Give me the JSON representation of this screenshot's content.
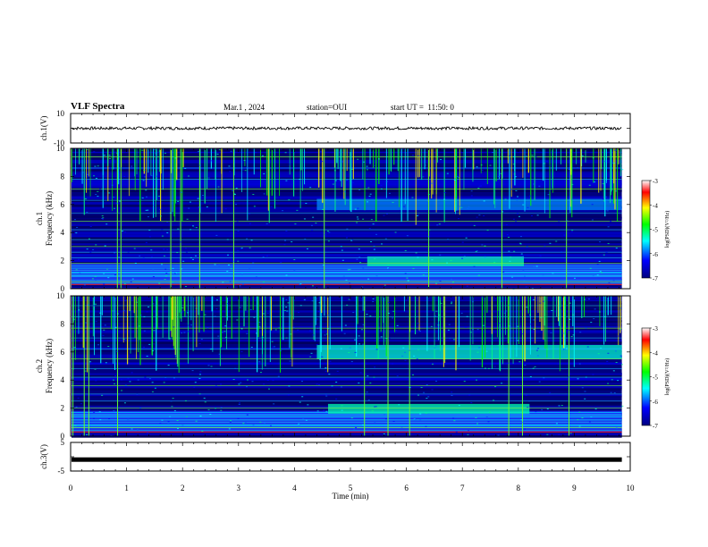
{
  "header": {
    "title": "VLF Spectra",
    "date": "Mar.1 , 2024",
    "station": "station=OUI",
    "start": "start UT =  11:50: 0"
  },
  "chart_data": [
    {
      "type": "line",
      "panel": "ch1-waveform",
      "ylabel": "ch.1(V)",
      "ylim": [
        -10,
        10
      ],
      "ytick_labels": [
        "10",
        "-10"
      ],
      "xlim": [
        0,
        9.85
      ],
      "baseline_value": 0,
      "noise_amplitude": 1,
      "color": "#000000"
    },
    {
      "type": "heatmap",
      "panel": "ch1-spectrogram",
      "ylabel": "ch.1\nFrequency (kHz)",
      "ylim": [
        0,
        10
      ],
      "yticks": [
        0,
        2,
        4,
        6,
        8,
        10
      ],
      "xlim": [
        0,
        9.85
      ],
      "color_scale": {
        "label": "log(PSD)(V²/Hz)",
        "range": [
          -7,
          -3
        ],
        "ticks": [
          "-3",
          "-4",
          "-5",
          "-6",
          "-7"
        ],
        "colors": [
          "#00007f",
          "#0000ff",
          "#00ffff",
          "#00ff00",
          "#ffff00",
          "#ff0000",
          "#ffffff"
        ]
      },
      "features": {
        "intense_band_khz": [
          0.3,
          1.8
        ],
        "tone_lines_khz": [
          0.5,
          0.9,
          1.3,
          1.8,
          2.2,
          2.6,
          3.0,
          3.5,
          4.2,
          4.8,
          5.4,
          6.3,
          7.1,
          7.8,
          8.6,
          9.4
        ],
        "bright_band": {
          "t": [
            5.3,
            8.1
          ],
          "f_khz": [
            1.6,
            2.3
          ]
        },
        "emission_6khz": {
          "t": [
            4.4,
            9.85
          ],
          "f_khz": [
            5.6,
            6.4
          ]
        }
      }
    },
    {
      "type": "heatmap",
      "panel": "ch2-spectrogram",
      "ylabel": "ch.2\nFrequency (kHz)",
      "ylim": [
        0,
        10
      ],
      "yticks": [
        0,
        2,
        4,
        6,
        8,
        10
      ],
      "xlim": [
        0,
        9.85
      ],
      "color_scale": {
        "label": "log(PSD)(V²/Hz)",
        "range": [
          -7,
          -3
        ],
        "ticks": [
          "-3",
          "-4",
          "-5",
          "-6",
          "-7"
        ],
        "colors": [
          "#00007f",
          "#0000ff",
          "#00ffff",
          "#00ff00",
          "#ffff00",
          "#ff0000",
          "#ffffff"
        ]
      },
      "features": {
        "intense_band_khz": [
          0.3,
          1.8
        ],
        "tone_lines_khz": [
          0.6,
          1.0,
          1.5,
          2.0,
          2.5,
          3.0,
          3.6,
          4.2,
          4.8,
          5.5,
          6.2,
          7.0,
          7.7,
          8.5,
          9.3
        ],
        "bright_band": {
          "t": [
            4.6,
            8.2
          ],
          "f_khz": [
            1.6,
            2.3
          ]
        },
        "emission_6khz": {
          "t": [
            4.4,
            9.85
          ],
          "f_khz": [
            5.5,
            6.5
          ]
        }
      }
    },
    {
      "type": "line",
      "panel": "ch3-waveform",
      "ylabel": "ch.3(V)",
      "ylim": [
        -5,
        5
      ],
      "ytick_labels": [
        "5",
        "-5"
      ],
      "xlim": [
        0,
        9.85
      ],
      "baseline_value": -1,
      "noise_amplitude": 0.2,
      "color": "#000000"
    }
  ],
  "x_axis": {
    "label": "Time (min)",
    "ticks": [
      "0",
      "1",
      "2",
      "3",
      "4",
      "5",
      "6",
      "7",
      "8",
      "9",
      "10"
    ],
    "range": [
      0,
      10
    ]
  }
}
